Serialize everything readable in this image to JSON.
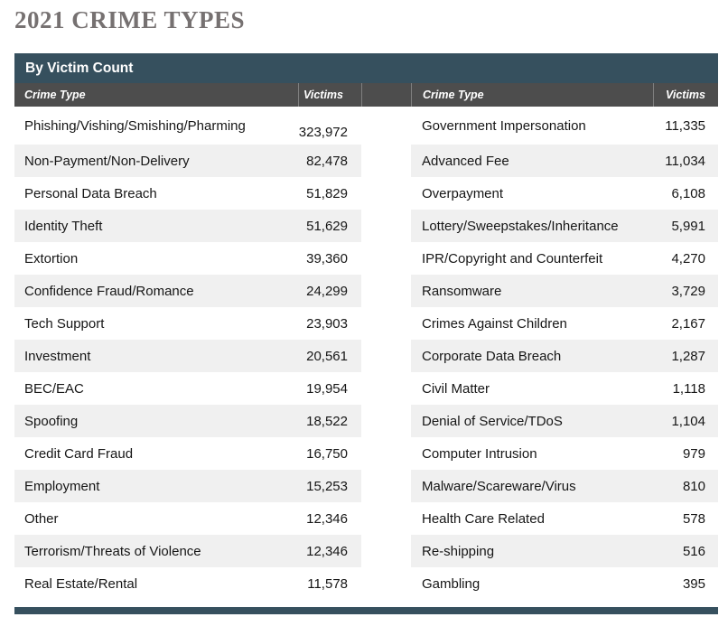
{
  "title": "2021 CRIME TYPES",
  "section_header": "By Victim Count",
  "columns": {
    "crime_type": "Crime Type",
    "victims": "Victims"
  },
  "colors": {
    "band_teal": "#36505E",
    "header_gray": "#4D4D4D",
    "header_divider": "#7F7F7F",
    "row_stripe": "#F0F0F0",
    "title_gray": "#767171",
    "body_text": "#161616"
  },
  "tables": {
    "left": {
      "rows": [
        {
          "type": "Phishing/Vishing/Smishing/Pharming",
          "victims": "323,972"
        },
        {
          "type": "Non-Payment/Non-Delivery",
          "victims": "82,478"
        },
        {
          "type": "Personal Data Breach",
          "victims": "51,829"
        },
        {
          "type": "Identity Theft",
          "victims": "51,629"
        },
        {
          "type": "Extortion",
          "victims": "39,360"
        },
        {
          "type": "Confidence Fraud/Romance",
          "victims": "24,299"
        },
        {
          "type": "Tech Support",
          "victims": "23,903"
        },
        {
          "type": "Investment",
          "victims": "20,561"
        },
        {
          "type": "BEC/EAC",
          "victims": "19,954"
        },
        {
          "type": "Spoofing",
          "victims": "18,522"
        },
        {
          "type": "Credit Card Fraud",
          "victims": "16,750"
        },
        {
          "type": "Employment",
          "victims": "15,253"
        },
        {
          "type": "Other",
          "victims": "12,346"
        },
        {
          "type": "Terrorism/Threats of Violence",
          "victims": "12,346"
        },
        {
          "type": "Real Estate/Rental",
          "victims": "11,578"
        }
      ]
    },
    "right": {
      "rows": [
        {
          "type": "Government Impersonation",
          "victims": "11,335"
        },
        {
          "type": "Advanced Fee",
          "victims": "11,034"
        },
        {
          "type": "Overpayment",
          "victims": "6,108"
        },
        {
          "type": "Lottery/Sweepstakes/Inheritance",
          "victims": "5,991"
        },
        {
          "type": "IPR/Copyright and Counterfeit",
          "victims": "4,270"
        },
        {
          "type": "Ransomware",
          "victims": "3,729"
        },
        {
          "type": "Crimes Against Children",
          "victims": "2,167"
        },
        {
          "type": "Corporate Data Breach",
          "victims": "1,287"
        },
        {
          "type": "Civil Matter",
          "victims": "1,118"
        },
        {
          "type": "Denial of Service/TDoS",
          "victims": "1,104"
        },
        {
          "type": "Computer Intrusion",
          "victims": "979"
        },
        {
          "type": "Malware/Scareware/Virus",
          "victims": "810"
        },
        {
          "type": "Health Care Related",
          "victims": "578"
        },
        {
          "type": "Re-shipping",
          "victims": "516"
        },
        {
          "type": "Gambling",
          "victims": "395"
        }
      ]
    }
  },
  "chart_data": {
    "type": "table",
    "title": "2021 Crime Types — By Victim Count",
    "columns": [
      "Crime Type",
      "Victims"
    ],
    "rows": [
      [
        "Phishing/Vishing/Smishing/Pharming",
        323972
      ],
      [
        "Non-Payment/Non-Delivery",
        82478
      ],
      [
        "Personal Data Breach",
        51829
      ],
      [
        "Identity Theft",
        51629
      ],
      [
        "Extortion",
        39360
      ],
      [
        "Confidence Fraud/Romance",
        24299
      ],
      [
        "Tech Support",
        23903
      ],
      [
        "Investment",
        20561
      ],
      [
        "BEC/EAC",
        19954
      ],
      [
        "Spoofing",
        18522
      ],
      [
        "Credit Card Fraud",
        16750
      ],
      [
        "Employment",
        15253
      ],
      [
        "Other",
        12346
      ],
      [
        "Terrorism/Threats of Violence",
        12346
      ],
      [
        "Real Estate/Rental",
        11578
      ],
      [
        "Government Impersonation",
        11335
      ],
      [
        "Advanced Fee",
        11034
      ],
      [
        "Overpayment",
        6108
      ],
      [
        "Lottery/Sweepstakes/Inheritance",
        5991
      ],
      [
        "IPR/Copyright and Counterfeit",
        4270
      ],
      [
        "Ransomware",
        3729
      ],
      [
        "Crimes Against Children",
        2167
      ],
      [
        "Corporate Data Breach",
        1287
      ],
      [
        "Civil Matter",
        1118
      ],
      [
        "Denial of Service/TDoS",
        1104
      ],
      [
        "Computer Intrusion",
        979
      ],
      [
        "Malware/Scareware/Virus",
        810
      ],
      [
        "Health Care Related",
        578
      ],
      [
        "Re-shipping",
        516
      ],
      [
        "Gambling",
        395
      ]
    ]
  }
}
